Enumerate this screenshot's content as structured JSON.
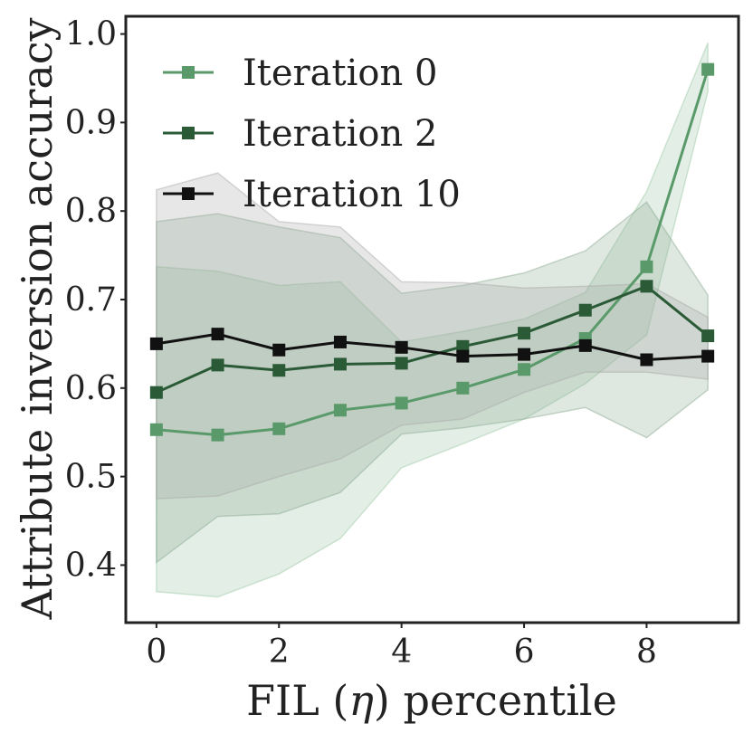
{
  "chart_data": {
    "type": "line",
    "title": "",
    "xlabel_parts": [
      "FIL (",
      "η",
      ") percentile"
    ],
    "ylabel": "Attribute inversion accuracy",
    "x": [
      0,
      1,
      2,
      3,
      4,
      5,
      6,
      7,
      8,
      9
    ],
    "xlim": [
      -0.5,
      9.5
    ],
    "ylim": [
      0.335,
      1.02
    ],
    "xticks": [
      0,
      2,
      4,
      6,
      8
    ],
    "xtick_labels": [
      "0",
      "2",
      "4",
      "6",
      "8"
    ],
    "yticks": [
      0.4,
      0.5,
      0.6,
      0.7,
      0.8,
      0.9,
      1.0
    ],
    "ytick_labels": [
      "0.4",
      "0.5",
      "0.6",
      "0.7",
      "0.8",
      "0.9",
      "1.0"
    ],
    "grid": false,
    "legend_position": "top-left",
    "series": [
      {
        "name": "Iteration 0",
        "color": "#5a9a6a",
        "band_color": "#9cc7a4",
        "values": [
          0.553,
          0.547,
          0.554,
          0.575,
          0.583,
          0.6,
          0.621,
          0.656,
          0.737,
          0.96
        ],
        "band_lower": [
          0.37,
          0.364,
          0.39,
          0.43,
          0.51,
          0.537,
          0.565,
          0.605,
          0.66,
          0.935
        ],
        "band_upper": [
          0.737,
          0.732,
          0.716,
          0.72,
          0.652,
          0.664,
          0.678,
          0.708,
          0.822,
          0.99
        ]
      },
      {
        "name": "Iteration 2",
        "color": "#2a5a36",
        "band_color": "#8aa890",
        "values": [
          0.595,
          0.626,
          0.62,
          0.627,
          0.628,
          0.647,
          0.662,
          0.688,
          0.715,
          0.659
        ],
        "band_lower": [
          0.403,
          0.455,
          0.458,
          0.482,
          0.548,
          0.555,
          0.565,
          0.578,
          0.544,
          0.598
        ],
        "band_upper": [
          0.788,
          0.797,
          0.782,
          0.77,
          0.707,
          0.716,
          0.73,
          0.755,
          0.81,
          0.705
        ]
      },
      {
        "name": "Iteration 10",
        "color": "#111111",
        "band_color": "#a8a8a8",
        "values": [
          0.65,
          0.661,
          0.643,
          0.652,
          0.646,
          0.636,
          0.638,
          0.648,
          0.632,
          0.636
        ],
        "band_lower": [
          0.475,
          0.478,
          0.5,
          0.52,
          0.558,
          0.565,
          0.595,
          0.618,
          0.618,
          0.61
        ],
        "band_upper": [
          0.824,
          0.843,
          0.788,
          0.782,
          0.72,
          0.719,
          0.713,
          0.715,
          0.718,
          0.68
        ]
      }
    ]
  }
}
